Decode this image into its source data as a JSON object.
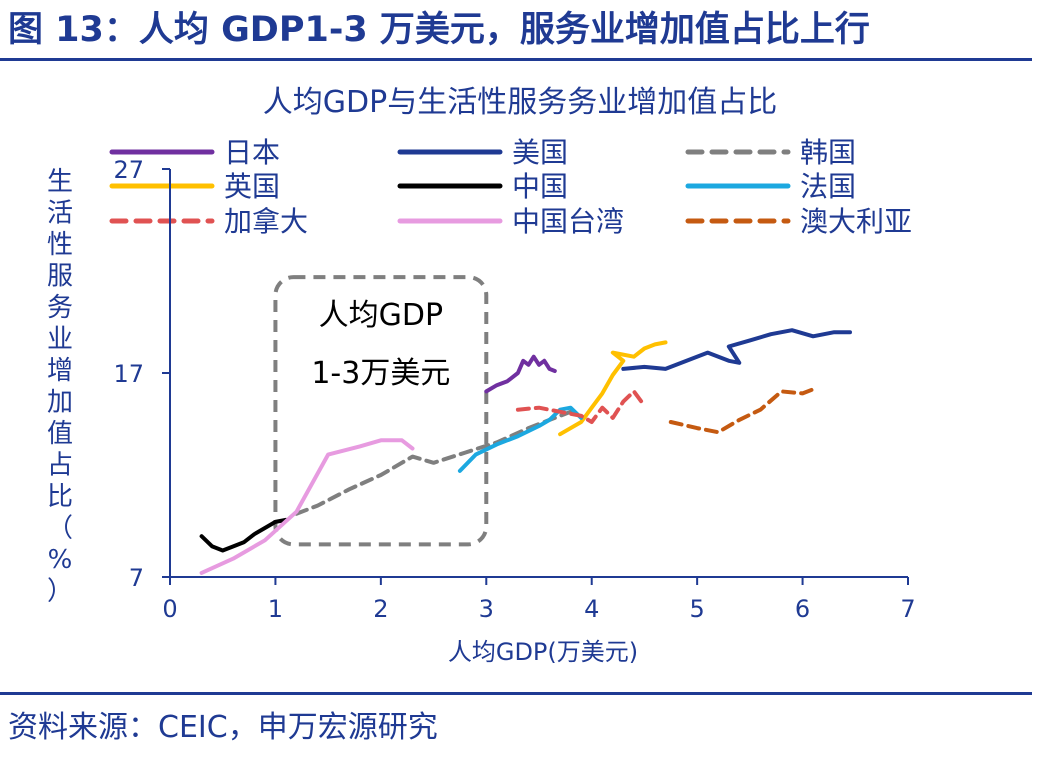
{
  "figure_title": "图 13：人均 GDP1-3 万美元，服务业增加值占比上行",
  "source": "资料来源：CEIC，申万宏源研究",
  "colors": {
    "brand": "#1f3a93"
  },
  "chart_data": {
    "type": "line",
    "title": "人均GDP与生活性服务务业增加值占比",
    "xlabel": "人均GDP(万美元)",
    "ylabel": "生活性服务业增加值占比（%）",
    "xlim": [
      0,
      7
    ],
    "ylim": [
      7,
      27
    ],
    "xticks": [
      "0",
      "1",
      "2",
      "3",
      "4",
      "5",
      "6",
      "7"
    ],
    "yticks": [
      "7",
      "17",
      "27"
    ],
    "grid": false,
    "legend_position": "top",
    "annotation": {
      "lines": [
        "人均GDP",
        "1-3万美元"
      ],
      "x_range": [
        1.0,
        3.0
      ],
      "y_range": [
        8.6,
        21.7
      ]
    },
    "series": [
      {
        "name": "日本",
        "color": "#7030a0",
        "dash": false,
        "x": [
          3.0,
          3.1,
          3.2,
          3.3,
          3.35,
          3.4,
          3.45,
          3.5,
          3.55,
          3.6,
          3.65
        ],
        "y": [
          16.1,
          16.4,
          16.6,
          17.0,
          17.6,
          17.4,
          17.8,
          17.4,
          17.6,
          17.2,
          17.1
        ]
      },
      {
        "name": "美国",
        "color": "#1f3a93",
        "dash": false,
        "x": [
          4.3,
          4.5,
          4.7,
          4.9,
          5.1,
          5.3,
          5.4,
          5.3,
          5.5,
          5.7,
          5.9,
          6.1,
          6.3,
          6.45
        ],
        "y": [
          17.2,
          17.3,
          17.2,
          17.6,
          18.0,
          17.6,
          17.5,
          18.3,
          18.6,
          18.9,
          19.1,
          18.8,
          19.0,
          19.0
        ]
      },
      {
        "name": "韩国",
        "color": "#7f7f7f",
        "dash": true,
        "x": [
          1.2,
          1.4,
          1.7,
          2.0,
          2.3,
          2.5,
          2.8,
          3.1,
          3.4,
          3.6,
          3.8
        ],
        "y": [
          10.1,
          10.5,
          11.3,
          12.0,
          12.9,
          12.6,
          13.1,
          13.6,
          14.3,
          14.7,
          15.1
        ]
      },
      {
        "name": "英国",
        "color": "#ffc000",
        "dash": false,
        "x": [
          3.7,
          3.9,
          4.0,
          4.1,
          4.2,
          4.3,
          4.2,
          4.4,
          4.5,
          4.6,
          4.7
        ],
        "y": [
          14.0,
          14.6,
          15.3,
          16.0,
          16.9,
          17.6,
          18.0,
          17.8,
          18.2,
          18.4,
          18.5
        ]
      },
      {
        "name": "中国",
        "color": "#000000",
        "dash": false,
        "x": [
          0.3,
          0.4,
          0.5,
          0.6,
          0.7,
          0.8,
          0.9,
          1.0,
          1.1
        ],
        "y": [
          9.0,
          8.5,
          8.3,
          8.5,
          8.7,
          9.1,
          9.4,
          9.7,
          9.8
        ]
      },
      {
        "name": "法国",
        "color": "#1ca8e0",
        "dash": false,
        "x": [
          2.75,
          2.9,
          3.1,
          3.3,
          3.5,
          3.6,
          3.7,
          3.8,
          3.9
        ],
        "y": [
          12.2,
          13.0,
          13.5,
          13.9,
          14.4,
          14.7,
          15.2,
          15.3,
          14.8
        ]
      },
      {
        "name": "加拿大",
        "color": "#e05252",
        "dash": true,
        "x": [
          3.3,
          3.5,
          3.7,
          3.9,
          4.0,
          4.1,
          4.2,
          4.3,
          4.4,
          4.5
        ],
        "y": [
          15.2,
          15.3,
          15.1,
          14.9,
          14.6,
          15.3,
          14.8,
          15.6,
          16.1,
          15.4
        ]
      },
      {
        "name": "中国台湾",
        "color": "#e79be0",
        "dash": false,
        "x": [
          0.3,
          0.6,
          0.9,
          1.2,
          1.5,
          1.8,
          2.0,
          2.2,
          2.3
        ],
        "y": [
          7.2,
          7.9,
          8.8,
          10.2,
          13.0,
          13.4,
          13.7,
          13.7,
          13.3
        ]
      },
      {
        "name": "澳大利亚",
        "color": "#c55a11",
        "dash": true,
        "x": [
          4.75,
          5.0,
          5.2,
          5.4,
          5.6,
          5.8,
          6.0,
          6.1
        ],
        "y": [
          14.6,
          14.3,
          14.1,
          14.7,
          15.2,
          16.1,
          16.0,
          16.2
        ]
      }
    ]
  }
}
